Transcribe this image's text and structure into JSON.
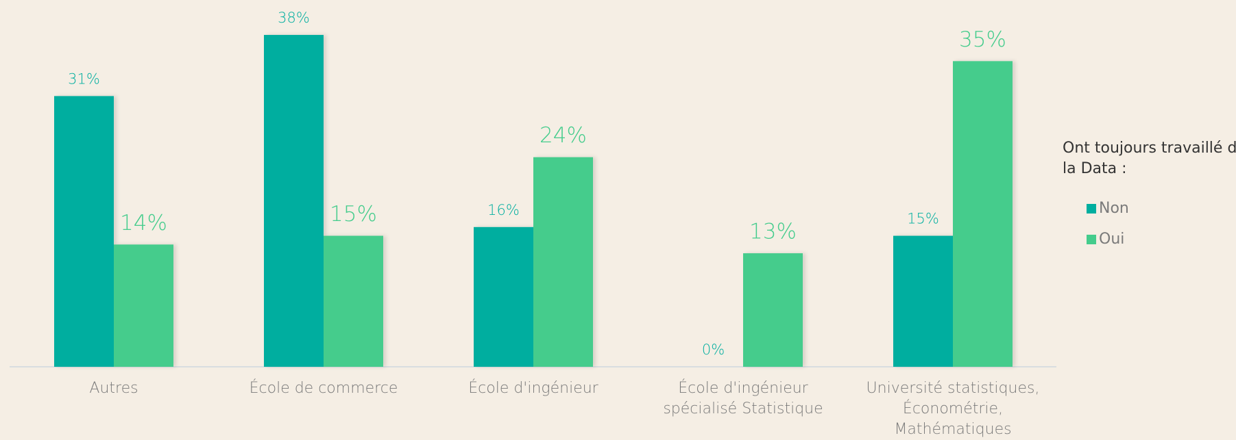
{
  "chart_data": {
    "type": "bar",
    "categories": [
      "Autres",
      "École de commerce",
      "École d'ingénieur",
      "École d'ingénieur spécialisé Statistique",
      "Université statistiques, Économétrie, Mathématiques"
    ],
    "series": [
      {
        "name": "Non",
        "color": "#00ae9f",
        "values": [
          31,
          38,
          16,
          0,
          15
        ],
        "value_labels": [
          "31%",
          "38%",
          "16%",
          "0%",
          "15%"
        ]
      },
      {
        "name": "Oui",
        "color": "#44cc8c",
        "values": [
          14,
          15,
          24,
          13,
          35
        ],
        "value_labels": [
          "14%",
          "15%",
          "24%",
          "13%",
          "35%"
        ]
      }
    ],
    "ylim": [
      0,
      42
    ],
    "legend_title": "Ont toujours travaillé dans la Data :",
    "legend": "right"
  }
}
